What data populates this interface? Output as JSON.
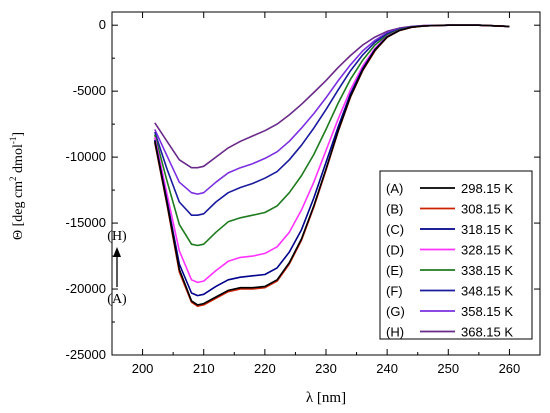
{
  "chart_data": {
    "type": "line",
    "xlabel": "λ [nm]",
    "ylabel_main": "Θ [deg cm",
    "ylabel_sup1": "2",
    "ylabel_mid": " dmol",
    "ylabel_sup2": "-1",
    "ylabel_end": "]",
    "xlim": [
      195,
      265
    ],
    "ylim": [
      -25000,
      1000
    ],
    "xticks": [
      "200",
      "210",
      "220",
      "230",
      "240",
      "250",
      "260"
    ],
    "yticks": [
      "0",
      "-5000",
      "-10000",
      "-15000",
      "-20000",
      "-25000"
    ],
    "arrow_top_label": "(H)",
    "arrow_bottom_label": "(A)",
    "x": [
      202,
      204,
      206,
      208,
      209,
      210,
      212,
      214,
      216,
      218,
      220,
      222,
      224,
      226,
      228,
      230,
      232,
      234,
      236,
      238,
      240,
      242,
      244,
      246,
      248,
      250,
      255,
      260
    ],
    "series": [
      {
        "name": "298.15 K",
        "letter": "(A)",
        "color": "#000000",
        "values": [
          -8800,
          -13500,
          -18500,
          -20900,
          -21200,
          -21100,
          -20600,
          -20100,
          -19900,
          -19900,
          -19800,
          -19300,
          -18000,
          -16200,
          -13700,
          -10900,
          -8000,
          -5400,
          -3400,
          -1900,
          -900,
          -400,
          -150,
          -60,
          -20,
          0,
          0,
          -100
        ]
      },
      {
        "name": "308.15 K",
        "letter": "(B)",
        "color": "#cc2200",
        "values": [
          -8900,
          -13600,
          -18700,
          -21000,
          -21300,
          -21200,
          -20700,
          -20200,
          -20000,
          -20000,
          -19900,
          -19400,
          -18100,
          -16300,
          -13800,
          -11000,
          -8050,
          -5450,
          -3450,
          -1950,
          -920,
          -410,
          -160,
          -60,
          -20,
          0,
          0,
          -100
        ]
      },
      {
        "name": "318.15 K",
        "letter": "(C)",
        "color": "#00008b",
        "values": [
          -8700,
          -13300,
          -18100,
          -20300,
          -20500,
          -20400,
          -19800,
          -19300,
          -19100,
          -19000,
          -18900,
          -18400,
          -17200,
          -15500,
          -13100,
          -10400,
          -7700,
          -5200,
          -3300,
          -1850,
          -880,
          -390,
          -150,
          -60,
          -20,
          0,
          0,
          -100
        ]
      },
      {
        "name": "328.15 K",
        "letter": "(D)",
        "color": "#ff33ff",
        "values": [
          -8500,
          -12800,
          -17100,
          -19300,
          -19500,
          -19400,
          -18600,
          -17900,
          -17600,
          -17500,
          -17300,
          -16800,
          -15700,
          -14000,
          -11900,
          -9500,
          -7100,
          -4900,
          -3100,
          -1750,
          -850,
          -380,
          -150,
          -60,
          -20,
          0,
          0,
          -100
        ]
      },
      {
        "name": "338.15 K",
        "letter": "(E)",
        "color": "#1e7b1e",
        "values": [
          -8300,
          -11800,
          -15100,
          -16600,
          -16700,
          -16600,
          -15700,
          -14900,
          -14600,
          -14400,
          -14200,
          -13700,
          -12700,
          -11400,
          -9800,
          -7900,
          -5900,
          -4100,
          -2650,
          -1500,
          -750,
          -340,
          -130,
          -50,
          -20,
          0,
          0,
          -100
        ]
      },
      {
        "name": "348.15 K",
        "letter": "(F)",
        "color": "#1a1a9e",
        "values": [
          -8100,
          -10900,
          -13400,
          -14400,
          -14400,
          -14300,
          -13400,
          -12700,
          -12300,
          -12000,
          -11600,
          -11100,
          -10200,
          -9100,
          -7800,
          -6400,
          -4900,
          -3450,
          -2250,
          -1300,
          -650,
          -300,
          -120,
          -50,
          -20,
          0,
          0,
          -100
        ]
      },
      {
        "name": "358.15 K",
        "letter": "(G)",
        "color": "#7b2fe0",
        "values": [
          -7900,
          -9900,
          -11900,
          -12700,
          -12800,
          -12700,
          -11900,
          -11200,
          -10800,
          -10500,
          -10100,
          -9600,
          -8800,
          -7800,
          -6700,
          -5500,
          -4200,
          -3000,
          -1950,
          -1150,
          -580,
          -270,
          -110,
          -40,
          -20,
          0,
          0,
          -100
        ]
      },
      {
        "name": "368.15 K",
        "letter": "(H)",
        "color": "#6a2a8a",
        "values": [
          -7400,
          -8800,
          -10200,
          -10800,
          -10800,
          -10700,
          -10000,
          -9300,
          -8800,
          -8400,
          -8000,
          -7500,
          -6800,
          -6000,
          -5100,
          -4200,
          -3200,
          -2300,
          -1500,
          -900,
          -460,
          -220,
          -90,
          -30,
          -10,
          0,
          0,
          -100
        ]
      }
    ]
  }
}
